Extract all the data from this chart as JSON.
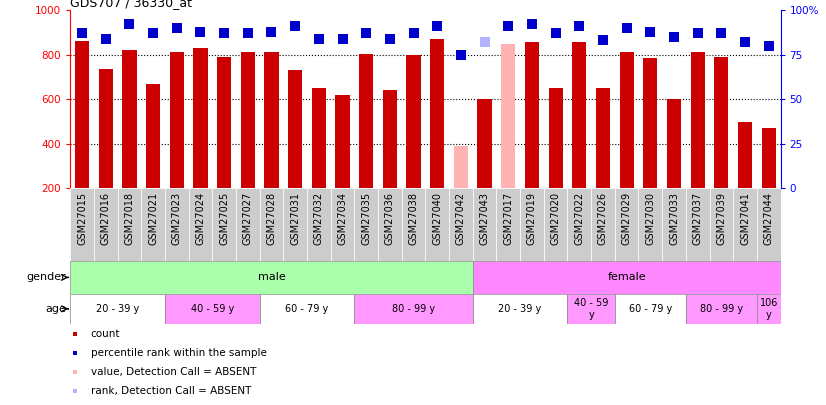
{
  "title": "GDS707 / 36330_at",
  "samples": [
    "GSM27015",
    "GSM27016",
    "GSM27018",
    "GSM27021",
    "GSM27023",
    "GSM27024",
    "GSM27025",
    "GSM27027",
    "GSM27028",
    "GSM27031",
    "GSM27032",
    "GSM27034",
    "GSM27035",
    "GSM27036",
    "GSM27038",
    "GSM27040",
    "GSM27042",
    "GSM27043",
    "GSM27017",
    "GSM27019",
    "GSM27020",
    "GSM27022",
    "GSM27026",
    "GSM27029",
    "GSM27030",
    "GSM27033",
    "GSM27037",
    "GSM27039",
    "GSM27041",
    "GSM27044"
  ],
  "counts": [
    860,
    735,
    820,
    670,
    810,
    830,
    790,
    810,
    810,
    730,
    650,
    620,
    805,
    640,
    800,
    870,
    390,
    600,
    850,
    855,
    650,
    855,
    650,
    810,
    785,
    600,
    810,
    790,
    500,
    470
  ],
  "absent_count_idx": [
    16,
    18
  ],
  "percentile": [
    87,
    84,
    92,
    87,
    90,
    88,
    87,
    87,
    88,
    91,
    84,
    84,
    87,
    84,
    87,
    91,
    75,
    82,
    91,
    92,
    87,
    91,
    83,
    90,
    88,
    85,
    87,
    87,
    82,
    80
  ],
  "absent_rank_idx": [
    17
  ],
  "ylim_left": [
    200,
    1000
  ],
  "ylim_right": [
    0,
    100
  ],
  "yticks_left": [
    200,
    400,
    600,
    800,
    1000
  ],
  "yticks_right": [
    0,
    25,
    50,
    75,
    100
  ],
  "bar_color": "#cc0000",
  "absent_bar_color": "#ffb3b3",
  "dot_color": "#0000cc",
  "absent_dot_color": "#b3b3ff",
  "dot_size": 45,
  "gridlines": [
    400,
    600,
    800
  ],
  "gender_groups": [
    {
      "label": "male",
      "start": 0,
      "end": 16,
      "color": "#aaffaa"
    },
    {
      "label": "female",
      "start": 17,
      "end": 29,
      "color": "#ff88ff"
    }
  ],
  "age_groups": [
    {
      "label": "20 - 39 y",
      "start": 0,
      "end": 3,
      "color": "#ffffff"
    },
    {
      "label": "40 - 59 y",
      "start": 4,
      "end": 7,
      "color": "#ff99ff"
    },
    {
      "label": "60 - 79 y",
      "start": 8,
      "end": 11,
      "color": "#ffffff"
    },
    {
      "label": "80 - 99 y",
      "start": 12,
      "end": 16,
      "color": "#ff99ff"
    },
    {
      "label": "20 - 39 y",
      "start": 17,
      "end": 20,
      "color": "#ffffff"
    },
    {
      "label": "40 - 59\ny",
      "start": 21,
      "end": 22,
      "color": "#ff99ff"
    },
    {
      "label": "60 - 79 y",
      "start": 23,
      "end": 25,
      "color": "#ffffff"
    },
    {
      "label": "80 - 99 y",
      "start": 26,
      "end": 28,
      "color": "#ff99ff"
    },
    {
      "label": "106\ny",
      "start": 29,
      "end": 29,
      "color": "#ff99ff"
    }
  ],
  "legend_items": [
    {
      "label": "count",
      "color": "#cc0000"
    },
    {
      "label": "percentile rank within the sample",
      "color": "#0000cc"
    },
    {
      "label": "value, Detection Call = ABSENT",
      "color": "#ffb3b3"
    },
    {
      "label": "rank, Detection Call = ABSENT",
      "color": "#b3b3ff"
    }
  ],
  "xticklabel_bg": "#cccccc",
  "label_fontsize": 7,
  "tick_fontsize": 7.5
}
